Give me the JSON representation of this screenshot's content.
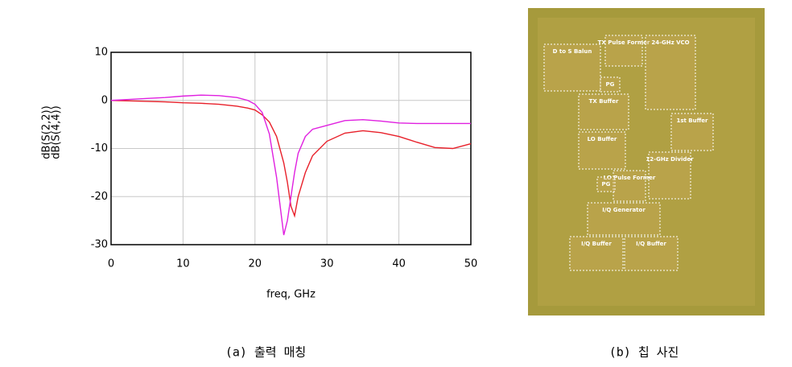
{
  "chart_data": {
    "type": "line",
    "x_label": "freq, GHz",
    "x": [
      0,
      2.5,
      5,
      7.5,
      10,
      12.5,
      15,
      17.5,
      19,
      20,
      21,
      22,
      23,
      24,
      24.5,
      25,
      25.5,
      26,
      27,
      28,
      30,
      32.5,
      35,
      37.5,
      40,
      42.5,
      45,
      47.5,
      50
    ],
    "series": [
      {
        "name": "dB(S(4,4))",
        "color": "#e8202a",
        "values": [
          0,
          -0.1,
          -0.2,
          -0.3,
          -0.5,
          -0.6,
          -0.8,
          -1.2,
          -1.6,
          -2,
          -3,
          -4.5,
          -7.5,
          -13,
          -17,
          -22,
          -24,
          -20,
          -15,
          -11.5,
          -8.5,
          -6.8,
          -6.3,
          -6.7,
          -7.5,
          -8.7,
          -9.8,
          -10,
          -9
        ]
      },
      {
        "name": "dB(S(2,2))",
        "color": "#e020e0",
        "values": [
          0,
          0.2,
          0.4,
          0.6,
          0.9,
          1.1,
          1,
          0.6,
          0,
          -0.8,
          -2.5,
          -7,
          -16,
          -28,
          -25,
          -20,
          -15,
          -11,
          -7.5,
          -6,
          -5.2,
          -4.2,
          -4,
          -4.3,
          -4.7,
          -4.8,
          -4.8,
          -4.8,
          -4.8
        ]
      }
    ],
    "xlim": [
      0,
      50
    ],
    "xticks": [
      0,
      10,
      20,
      30,
      40,
      50
    ],
    "ylim": [
      -30,
      10
    ],
    "yticks": [
      -30,
      -20,
      -10,
      0,
      10
    ],
    "grid": true
  },
  "photo": {
    "blocks": [
      "D to S Balun",
      "TX Pulse Former",
      "24-GHz VCO",
      "PG",
      "TX Buffer",
      "1st Buffer",
      "LO Buffer",
      "12-GHz Divider",
      "LO Pulse Former",
      "PG",
      "I/Q Generator",
      "I/Q Buffer",
      "I/Q Buffer"
    ]
  },
  "captions": [
    "(a) 출력 매칭",
    "(b) 칩 사진"
  ]
}
